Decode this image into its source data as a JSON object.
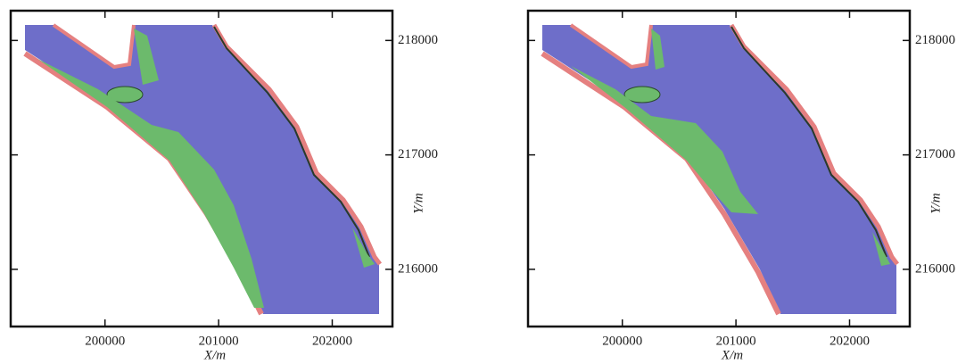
{
  "panels": [
    {
      "xlim": [
        199170,
        202530
      ],
      "ylim": [
        215500,
        218260
      ],
      "xticks": [
        200000,
        201000,
        202000
      ],
      "yticks": [
        216000,
        217000,
        218000
      ],
      "xlabel": "X/m",
      "ylabel": "Y/m"
    },
    {
      "xlim": [
        199170,
        202530
      ],
      "ylim": [
        215500,
        218260
      ],
      "xticks": [
        200000,
        201000,
        202000
      ],
      "yticks": [
        216000,
        217000,
        218000
      ],
      "xlabel": "X/m",
      "ylabel": "Y/m"
    }
  ]
}
